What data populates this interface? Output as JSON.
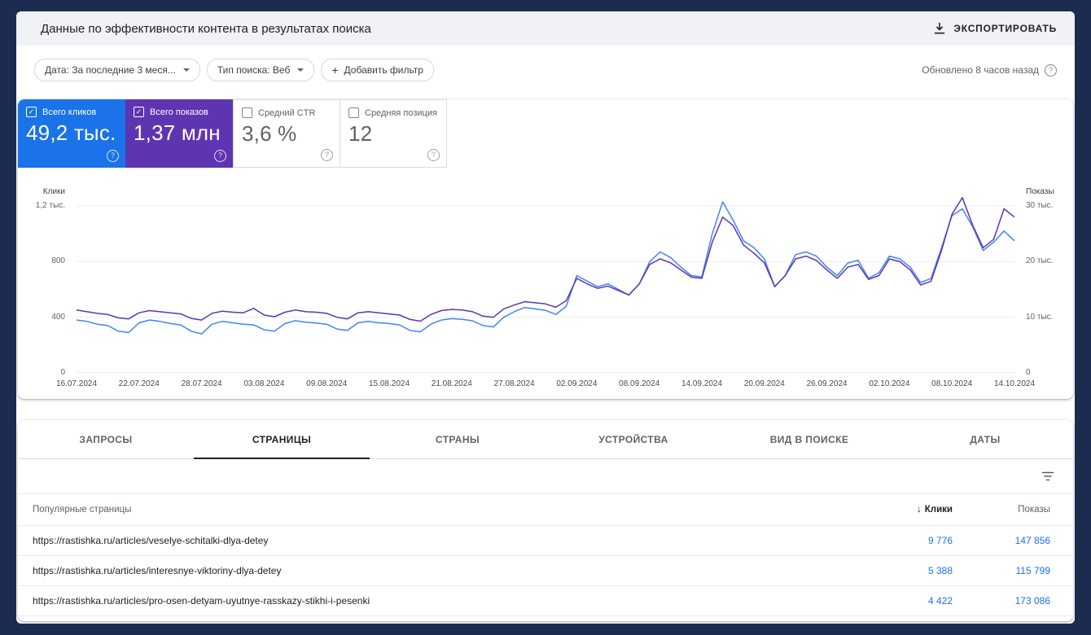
{
  "header": {
    "title": "Данные по эффективности контента в результатах поиска",
    "export_label": "ЭКСПОРТИРОВАТЬ"
  },
  "filters": {
    "date_label": "Дата: За последние 3 меся...",
    "search_type_label": "Тип поиска: Веб",
    "add_filter_label": "Добавить фильтр",
    "updated_label": "Обновлено 8 часов назад"
  },
  "glyphs": {
    "check": "✓",
    "help": "?",
    "plus": "+",
    "sort_down": "↓"
  },
  "metric_cards": [
    {
      "name": "total-clicks",
      "label": "Всего кликов",
      "value": "49,2 тыс.",
      "checked": true,
      "bg": "#1a73e8"
    },
    {
      "name": "total-impressions",
      "label": "Всего показов",
      "value": "1,37 млн",
      "checked": true,
      "bg": "#5e35b1"
    },
    {
      "name": "avg-ctr",
      "label": "Средний CTR",
      "value": "3,6 %",
      "checked": false,
      "bg": "#ffffff"
    },
    {
      "name": "avg-position",
      "label": "Средняя позиция",
      "value": "12",
      "checked": false,
      "bg": "#ffffff"
    }
  ],
  "chart_data": {
    "type": "line",
    "grid": "horizontal",
    "x_tick_labels": [
      "16.07.2024",
      "22.07.2024",
      "28.07.2024",
      "03.08.2024",
      "09.08.2024",
      "15.08.2024",
      "21.08.2024",
      "27.08.2024",
      "02.09.2024",
      "08.09.2024",
      "14.09.2024",
      "20.09.2024",
      "26.09.2024",
      "02.10.2024",
      "08.10.2024",
      "14.10.2024"
    ],
    "left_axis": {
      "title": "Клики",
      "max": 1300,
      "ticks": [
        {
          "value": 1200,
          "label": "1,2 тыс."
        },
        {
          "value": 800,
          "label": "800"
        },
        {
          "value": 400,
          "label": "400"
        },
        {
          "value": 0,
          "label": "0"
        }
      ]
    },
    "right_axis": {
      "title": "Показы",
      "max": 32.5,
      "unit": "тыс.",
      "ticks": [
        {
          "value": 30,
          "label": "30 тыс."
        },
        {
          "value": 20,
          "label": "20 тыс."
        },
        {
          "value": 10,
          "label": "10 тыс."
        },
        {
          "value": 0,
          "label": "0"
        }
      ]
    },
    "series": [
      {
        "name": "Клики",
        "axis": "left",
        "color": "#4285f4",
        "values": [
          380,
          370,
          350,
          340,
          300,
          290,
          360,
          380,
          370,
          355,
          345,
          300,
          280,
          350,
          370,
          360,
          350,
          345,
          310,
          300,
          355,
          375,
          365,
          358,
          350,
          315,
          305,
          360,
          370,
          360,
          355,
          345,
          305,
          295,
          350,
          380,
          390,
          385,
          375,
          340,
          330,
          400,
          440,
          470,
          460,
          450,
          420,
          480,
          700,
          660,
          620,
          640,
          600,
          560,
          640,
          800,
          870,
          830,
          760,
          700,
          690,
          1000,
          1230,
          1100,
          950,
          900,
          820,
          620,
          700,
          850,
          870,
          840,
          760,
          700,
          790,
          810,
          680,
          720,
          840,
          820,
          760,
          650,
          680,
          900,
          1130,
          1180,
          1050,
          880,
          940,
          1020,
          950
        ]
      },
      {
        "name": "Показы (тыс.)",
        "axis": "right",
        "color": "#5e35b1",
        "values": [
          11.3,
          11.0,
          10.7,
          10.5,
          9.9,
          9.7,
          10.8,
          11.2,
          11.0,
          10.8,
          10.6,
          9.8,
          9.5,
          10.7,
          11.1,
          10.9,
          10.8,
          11.6,
          10.4,
          10.1,
          10.9,
          11.3,
          11.0,
          10.9,
          10.7,
          10.0,
          9.7,
          10.8,
          11.0,
          10.8,
          10.6,
          10.4,
          9.6,
          9.3,
          10.5,
          11.2,
          11.4,
          11.3,
          11.0,
          10.2,
          10.0,
          11.5,
          12.2,
          12.8,
          12.6,
          12.4,
          11.8,
          13.0,
          17.0,
          16.0,
          15.2,
          15.6,
          14.8,
          14.0,
          16.0,
          19.5,
          20.5,
          19.8,
          18.5,
          17.2,
          17.0,
          23.5,
          28.0,
          26.5,
          23.0,
          21.5,
          19.8,
          15.5,
          17.5,
          20.5,
          21.0,
          20.2,
          18.5,
          17.0,
          19.0,
          19.5,
          16.8,
          17.5,
          20.5,
          20.0,
          18.5,
          15.8,
          16.5,
          22.0,
          28.5,
          31.5,
          26.5,
          22.5,
          24.0,
          29.5,
          28.0
        ]
      }
    ]
  },
  "tabs": [
    {
      "name": "queries",
      "label": "ЗАПРОСЫ",
      "active": false
    },
    {
      "name": "pages",
      "label": "СТРАНИЦЫ",
      "active": true
    },
    {
      "name": "countries",
      "label": "СТРАНЫ",
      "active": false
    },
    {
      "name": "devices",
      "label": "УСТРОЙСТВА",
      "active": false
    },
    {
      "name": "search-appearance",
      "label": "ВИД В ПОИСКЕ",
      "active": false
    },
    {
      "name": "dates",
      "label": "ДАТЫ",
      "active": false
    }
  ],
  "table": {
    "columns": {
      "primary": "Популярные страницы",
      "clicks": "Клики",
      "impressions": "Показы"
    },
    "sort_indicator": "↓",
    "link_color": "#1a73e8",
    "rows": [
      {
        "page": "https://rastishka.ru/articles/veselye-schitalki-dlya-detey",
        "clicks": "9 776",
        "impressions": "147 856"
      },
      {
        "page": "https://rastishka.ru/articles/interesnye-viktoriny-dlya-detey",
        "clicks": "5 388",
        "impressions": "115 799"
      },
      {
        "page": "https://rastishka.ru/articles/pro-osen-detyam-uyutnye-rasskazy-stikhi-i-pesenki",
        "clicks": "4 422",
        "impressions": "173 086"
      }
    ]
  }
}
